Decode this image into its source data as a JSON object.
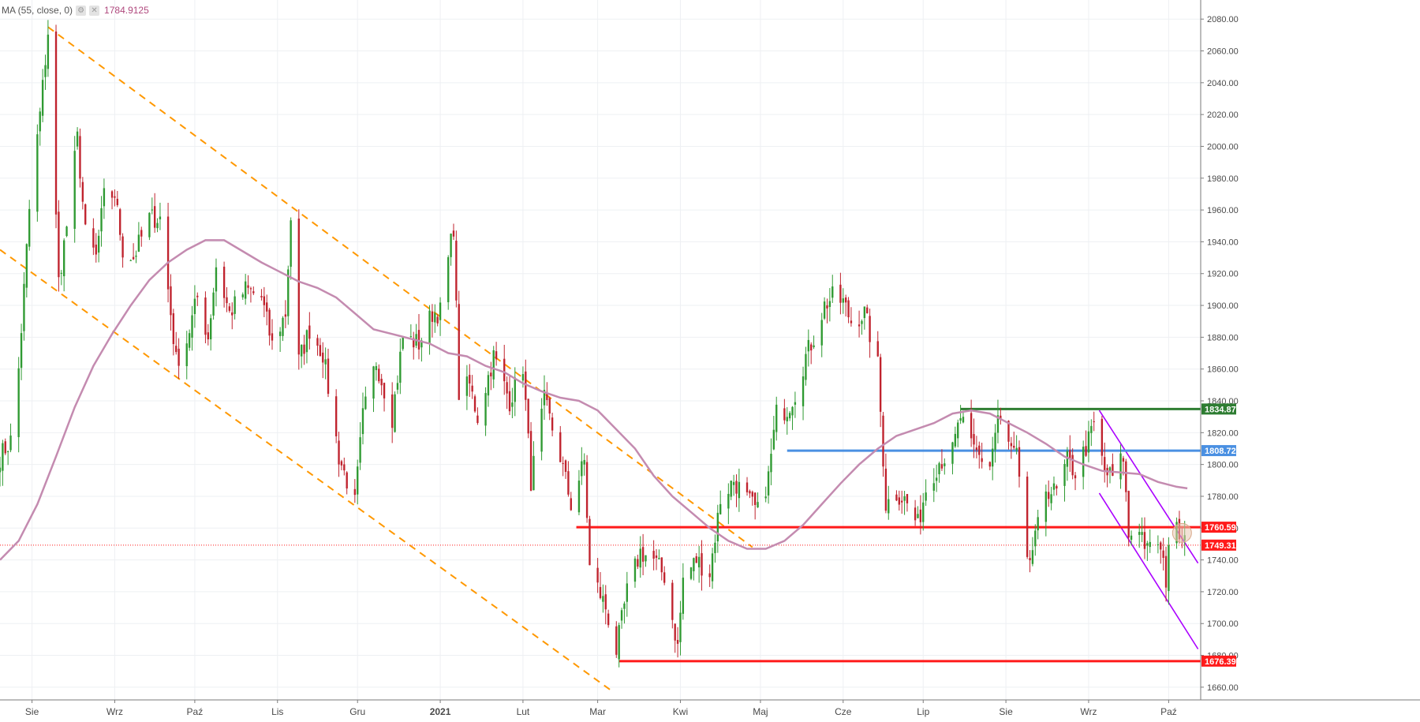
{
  "legend": {
    "indicator_label": "MA (55, close, 0)",
    "indicator_value": "1784.9125",
    "settings_glyph": "⚙",
    "close_glyph": "✕"
  },
  "chart_data": {
    "type": "candlestick",
    "title": "",
    "ylim": [
      1652,
      2092
    ],
    "y_ticks": [
      1660,
      1680,
      1700,
      1720,
      1740,
      1760,
      1780,
      1800,
      1820,
      1840,
      1860,
      1880,
      1900,
      1920,
      1940,
      1960,
      1980,
      2000,
      2020,
      2040,
      2060,
      2080
    ],
    "x_range": [
      "2020-07-20",
      "2021-10-13"
    ],
    "month_labels": [
      {
        "date": "2020-08-01",
        "label": "Sie"
      },
      {
        "date": "2020-09-01",
        "label": "Wrz"
      },
      {
        "date": "2020-10-01",
        "label": "Paź"
      },
      {
        "date": "2020-11-01",
        "label": "Lis"
      },
      {
        "date": "2020-12-01",
        "label": "Gru"
      },
      {
        "date": "2021-01-01",
        "label": "2021",
        "bold": true
      },
      {
        "date": "2021-02-01",
        "label": "Lut"
      },
      {
        "date": "2021-03-01",
        "label": "Mar"
      },
      {
        "date": "2021-04-01",
        "label": "Kwi"
      },
      {
        "date": "2021-05-01",
        "label": "Maj"
      },
      {
        "date": "2021-06-01",
        "label": "Cze"
      },
      {
        "date": "2021-07-01",
        "label": "Lip"
      },
      {
        "date": "2021-08-01",
        "label": "Sie"
      },
      {
        "date": "2021-09-01",
        "label": "Wrz"
      },
      {
        "date": "2021-10-01",
        "label": "Paź"
      }
    ],
    "price_path": [
      [
        "2020-07-20",
        1805
      ],
      [
        "2020-07-24",
        1815
      ],
      [
        "2020-07-27",
        1860
      ],
      [
        "2020-07-31",
        1960
      ],
      [
        "2020-08-04",
        2020
      ],
      [
        "2020-08-07",
        2072
      ],
      [
        "2020-08-11",
        1915
      ],
      [
        "2020-08-14",
        1950
      ],
      [
        "2020-08-18",
        2005
      ],
      [
        "2020-08-21",
        1945
      ],
      [
        "2020-08-25",
        1930
      ],
      [
        "2020-08-28",
        1968
      ],
      [
        "2020-09-01",
        1970
      ],
      [
        "2020-09-04",
        1935
      ],
      [
        "2020-09-08",
        1930
      ],
      [
        "2020-09-14",
        1955
      ],
      [
        "2020-09-18",
        1955
      ],
      [
        "2020-09-24",
        1865
      ],
      [
        "2020-09-28",
        1878
      ],
      [
        "2020-10-02",
        1905
      ],
      [
        "2020-10-06",
        1880
      ],
      [
        "2020-10-09",
        1925
      ],
      [
        "2020-10-14",
        1895
      ],
      [
        "2020-10-20",
        1910
      ],
      [
        "2020-10-26",
        1905
      ],
      [
        "2020-10-30",
        1875
      ],
      [
        "2020-11-04",
        1895
      ],
      [
        "2020-11-06",
        1955
      ],
      [
        "2020-11-09",
        1865
      ],
      [
        "2020-11-13",
        1885
      ],
      [
        "2020-11-18",
        1870
      ],
      [
        "2020-11-24",
        1805
      ],
      [
        "2020-11-30",
        1775
      ],
      [
        "2020-12-03",
        1830
      ],
      [
        "2020-12-08",
        1865
      ],
      [
        "2020-12-14",
        1830
      ],
      [
        "2020-12-18",
        1880
      ],
      [
        "2020-12-24",
        1876
      ],
      [
        "2020-12-29",
        1895
      ],
      [
        "2021-01-01",
        1896
      ],
      [
        "2021-01-06",
        1950
      ],
      [
        "2021-01-08",
        1845
      ],
      [
        "2021-01-12",
        1850
      ],
      [
        "2021-01-15",
        1830
      ],
      [
        "2021-01-21",
        1868
      ],
      [
        "2021-01-27",
        1840
      ],
      [
        "2021-02-01",
        1862
      ],
      [
        "2021-02-04",
        1790
      ],
      [
        "2021-02-09",
        1840
      ],
      [
        "2021-02-15",
        1805
      ],
      [
        "2021-02-19",
        1775
      ],
      [
        "2021-02-24",
        1802
      ],
      [
        "2021-02-26",
        1735
      ],
      [
        "2021-03-04",
        1710
      ],
      [
        "2021-03-08",
        1683
      ],
      [
        "2021-03-12",
        1720
      ],
      [
        "2021-03-17",
        1745
      ],
      [
        "2021-03-22",
        1740
      ],
      [
        "2021-03-26",
        1730
      ],
      [
        "2021-03-31",
        1685
      ],
      [
        "2021-04-02",
        1728
      ],
      [
        "2021-04-07",
        1740
      ],
      [
        "2021-04-12",
        1732
      ],
      [
        "2021-04-16",
        1778
      ],
      [
        "2021-04-21",
        1790
      ],
      [
        "2021-04-26",
        1778
      ],
      [
        "2021-04-30",
        1770
      ],
      [
        "2021-05-04",
        1792
      ],
      [
        "2021-05-07",
        1832
      ],
      [
        "2021-05-11",
        1835
      ],
      [
        "2021-05-14",
        1845
      ],
      [
        "2021-05-18",
        1868
      ],
      [
        "2021-05-21",
        1880
      ],
      [
        "2021-05-25",
        1900
      ],
      [
        "2021-05-28",
        1905
      ],
      [
        "2021-06-01",
        1902
      ],
      [
        "2021-06-04",
        1890
      ],
      [
        "2021-06-09",
        1895
      ],
      [
        "2021-06-14",
        1862
      ],
      [
        "2021-06-17",
        1775
      ],
      [
        "2021-06-21",
        1782
      ],
      [
        "2021-06-24",
        1778
      ],
      [
        "2021-06-29",
        1762
      ],
      [
        "2021-07-02",
        1785
      ],
      [
        "2021-07-07",
        1802
      ],
      [
        "2021-07-12",
        1808
      ],
      [
        "2021-07-15",
        1830
      ],
      [
        "2021-07-19",
        1810
      ],
      [
        "2021-07-22",
        1805
      ],
      [
        "2021-07-26",
        1800
      ],
      [
        "2021-07-29",
        1830
      ],
      [
        "2021-08-02",
        1812
      ],
      [
        "2021-08-05",
        1805
      ],
      [
        "2021-08-09",
        1735
      ],
      [
        "2021-08-12",
        1752
      ],
      [
        "2021-08-16",
        1785
      ],
      [
        "2021-08-20",
        1782
      ],
      [
        "2021-08-24",
        1802
      ],
      [
        "2021-08-27",
        1795
      ],
      [
        "2021-09-01",
        1815
      ],
      [
        "2021-09-03",
        1825
      ],
      [
        "2021-09-07",
        1795
      ],
      [
        "2021-09-10",
        1792
      ],
      [
        "2021-09-14",
        1805
      ],
      [
        "2021-09-16",
        1755
      ],
      [
        "2021-09-20",
        1762
      ],
      [
        "2021-09-23",
        1745
      ],
      [
        "2021-09-27",
        1752
      ],
      [
        "2021-09-30",
        1728
      ],
      [
        "2021-10-01",
        1752
      ],
      [
        "2021-10-05",
        1760
      ],
      [
        "2021-10-07",
        1757
      ]
    ],
    "moving_average_path": [
      [
        "2020-07-20",
        1740
      ],
      [
        "2020-07-27",
        1752
      ],
      [
        "2020-08-03",
        1775
      ],
      [
        "2020-08-10",
        1805
      ],
      [
        "2020-08-17",
        1836
      ],
      [
        "2020-08-24",
        1862
      ],
      [
        "2020-08-31",
        1882
      ],
      [
        "2020-09-07",
        1900
      ],
      [
        "2020-09-14",
        1916
      ],
      [
        "2020-09-21",
        1927
      ],
      [
        "2020-09-28",
        1935
      ],
      [
        "2020-10-05",
        1941
      ],
      [
        "2020-10-12",
        1941
      ],
      [
        "2020-10-19",
        1934
      ],
      [
        "2020-10-26",
        1927
      ],
      [
        "2020-11-02",
        1921
      ],
      [
        "2020-11-09",
        1915
      ],
      [
        "2020-11-16",
        1911
      ],
      [
        "2020-11-23",
        1905
      ],
      [
        "2020-11-30",
        1895
      ],
      [
        "2020-12-07",
        1885
      ],
      [
        "2020-12-14",
        1882
      ],
      [
        "2020-12-21",
        1879
      ],
      [
        "2020-12-28",
        1876
      ],
      [
        "2021-01-04",
        1870
      ],
      [
        "2021-01-11",
        1868
      ],
      [
        "2021-01-18",
        1862
      ],
      [
        "2021-01-25",
        1858
      ],
      [
        "2021-02-01",
        1851
      ],
      [
        "2021-02-08",
        1846
      ],
      [
        "2021-02-15",
        1842
      ],
      [
        "2021-02-22",
        1840
      ],
      [
        "2021-03-01",
        1834
      ],
      [
        "2021-03-08",
        1822
      ],
      [
        "2021-03-15",
        1810
      ],
      [
        "2021-03-22",
        1793
      ],
      [
        "2021-03-29",
        1780
      ],
      [
        "2021-04-05",
        1770
      ],
      [
        "2021-04-12",
        1760
      ],
      [
        "2021-04-19",
        1752
      ],
      [
        "2021-04-26",
        1747
      ],
      [
        "2021-05-03",
        1747
      ],
      [
        "2021-05-10",
        1752
      ],
      [
        "2021-05-17",
        1762
      ],
      [
        "2021-05-24",
        1775
      ],
      [
        "2021-05-31",
        1788
      ],
      [
        "2021-06-07",
        1800
      ],
      [
        "2021-06-14",
        1810
      ],
      [
        "2021-06-21",
        1818
      ],
      [
        "2021-06-28",
        1822
      ],
      [
        "2021-07-05",
        1826
      ],
      [
        "2021-07-12",
        1832
      ],
      [
        "2021-07-19",
        1834
      ],
      [
        "2021-07-26",
        1832
      ],
      [
        "2021-08-02",
        1826
      ],
      [
        "2021-08-09",
        1820
      ],
      [
        "2021-08-16",
        1813
      ],
      [
        "2021-08-23",
        1805
      ],
      [
        "2021-08-30",
        1800
      ],
      [
        "2021-09-06",
        1796
      ],
      [
        "2021-09-13",
        1795
      ],
      [
        "2021-09-20",
        1794
      ],
      [
        "2021-09-27",
        1789
      ],
      [
        "2021-10-04",
        1786
      ],
      [
        "2021-10-08",
        1785
      ]
    ],
    "horizontal_levels": [
      {
        "value": 1834.87,
        "label": "1834.87",
        "color": "#2e7d32",
        "from": "2021-07-15",
        "to": "2021-10-12"
      },
      {
        "value": 1808.72,
        "label": "1808.72",
        "color": "#4a90e2",
        "from": "2021-05-11",
        "to": "2021-10-12"
      },
      {
        "value": 1760.59,
        "label": "1760.59",
        "color": "#ff1a1a",
        "from": "2021-02-21",
        "to": "2021-10-12"
      },
      {
        "value": 1676.39,
        "label": "1676.39",
        "color": "#ff1a1a",
        "from": "2021-03-09",
        "to": "2021-10-12"
      }
    ],
    "current_price": {
      "value": 1749.31,
      "label": "1749.31",
      "color": "#ff1a1a"
    },
    "trendlines": [
      {
        "name": "",
        "color": "#ff9800",
        "style": "dashed",
        "from": [
          "2020-08-07",
          2075
        ],
        "to": [
          "2021-04-28",
          1748
        ]
      },
      {
        "name": "",
        "color": "#ff9800",
        "style": "dashed",
        "from": [
          "2020-07-20",
          1935
        ],
        "to": [
          "2021-03-06",
          1658
        ]
      },
      {
        "name": "",
        "color": "#aa00ff",
        "style": "solid",
        "from": [
          "2021-09-05",
          1834
        ],
        "to": [
          "2021-10-12",
          1738
        ]
      },
      {
        "name": "",
        "color": "#aa00ff",
        "style": "solid",
        "from": [
          "2021-09-05",
          1782
        ],
        "to": [
          "2021-10-12",
          1684
        ]
      }
    ],
    "highlight_marker": {
      "date": "2021-10-06",
      "value": 1757,
      "color": "#e8c9b3"
    }
  }
}
